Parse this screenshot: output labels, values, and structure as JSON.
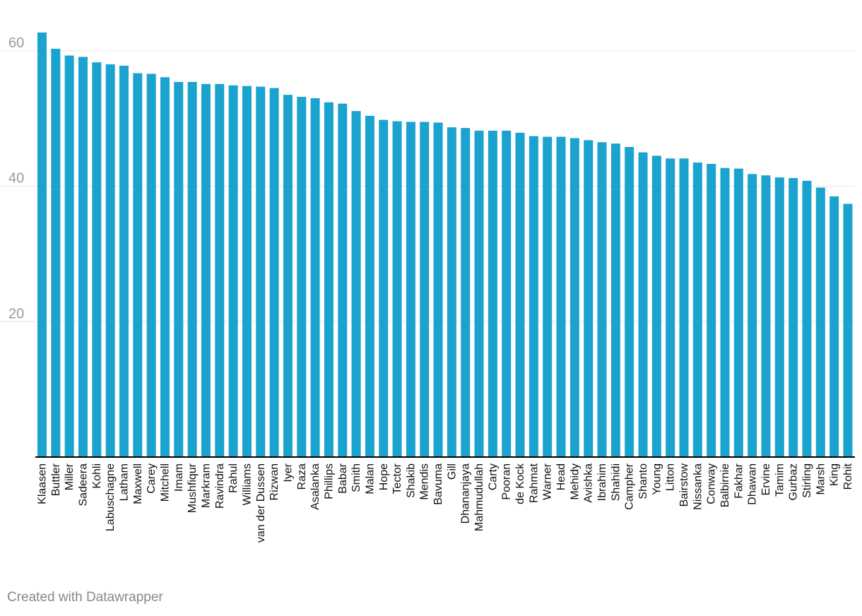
{
  "colors": {
    "bar": "#1ba3d0",
    "grid": "#e6e6e6",
    "axis": "#000000",
    "tick_text": "#999999",
    "label_text": "#111111"
  },
  "footer": {
    "credit": "Created with Datawrapper"
  },
  "chart_data": {
    "type": "bar",
    "title": "",
    "xlabel": "",
    "ylabel": "",
    "ylim": [
      0,
      60
    ],
    "yticks": [
      20,
      40,
      60
    ],
    "grid": true,
    "categories": [
      "Klaasen",
      "Buttler",
      "Miller",
      "Sadeera",
      "Kohli",
      "Labuschagne",
      "Latham",
      "Maxwell",
      "Carey",
      "Mitchell",
      "Imam",
      "Mushfiqur",
      "Markram",
      "Ravindra",
      "Rahul",
      "Williams",
      "van der Dussen",
      "Rizwan",
      "Iyer",
      "Raza",
      "Asalanka",
      "Phillips",
      "Babar",
      "Smith",
      "Malan",
      "Hope",
      "Tector",
      "Shakib",
      "Mendis",
      "Bavuma",
      "Gill",
      "Dhananjaya",
      "Mahmudullah",
      "Carty",
      "Pooran",
      "de Kock",
      "Rahmat",
      "Warner",
      "Head",
      "Mehidy",
      "Avishka",
      "Ibrahim",
      "Shahidi",
      "Campher",
      "Shanto",
      "Young",
      "Litton",
      "Bairstow",
      "Nissanka",
      "Conway",
      "Balbirnie",
      "Fakhar",
      "Dhawan",
      "Ervine",
      "Tamim",
      "Gurbaz",
      "Stirling",
      "Marsh",
      "King",
      "Rohit"
    ],
    "values": [
      62.7,
      60.3,
      59.3,
      59.1,
      58.3,
      58.0,
      57.8,
      56.7,
      56.6,
      56.1,
      55.4,
      55.4,
      55.1,
      55.1,
      54.9,
      54.8,
      54.7,
      54.5,
      53.5,
      53.2,
      53.0,
      52.4,
      52.2,
      51.1,
      50.4,
      49.8,
      49.6,
      49.5,
      49.5,
      49.4,
      48.7,
      48.6,
      48.2,
      48.2,
      48.2,
      47.9,
      47.4,
      47.3,
      47.3,
      47.1,
      46.8,
      46.5,
      46.3,
      45.8,
      45.0,
      44.5,
      44.1,
      44.1,
      43.5,
      43.3,
      42.7,
      42.6,
      41.8,
      41.6,
      41.3,
      41.2,
      40.8,
      39.8,
      38.5,
      37.4
    ]
  }
}
